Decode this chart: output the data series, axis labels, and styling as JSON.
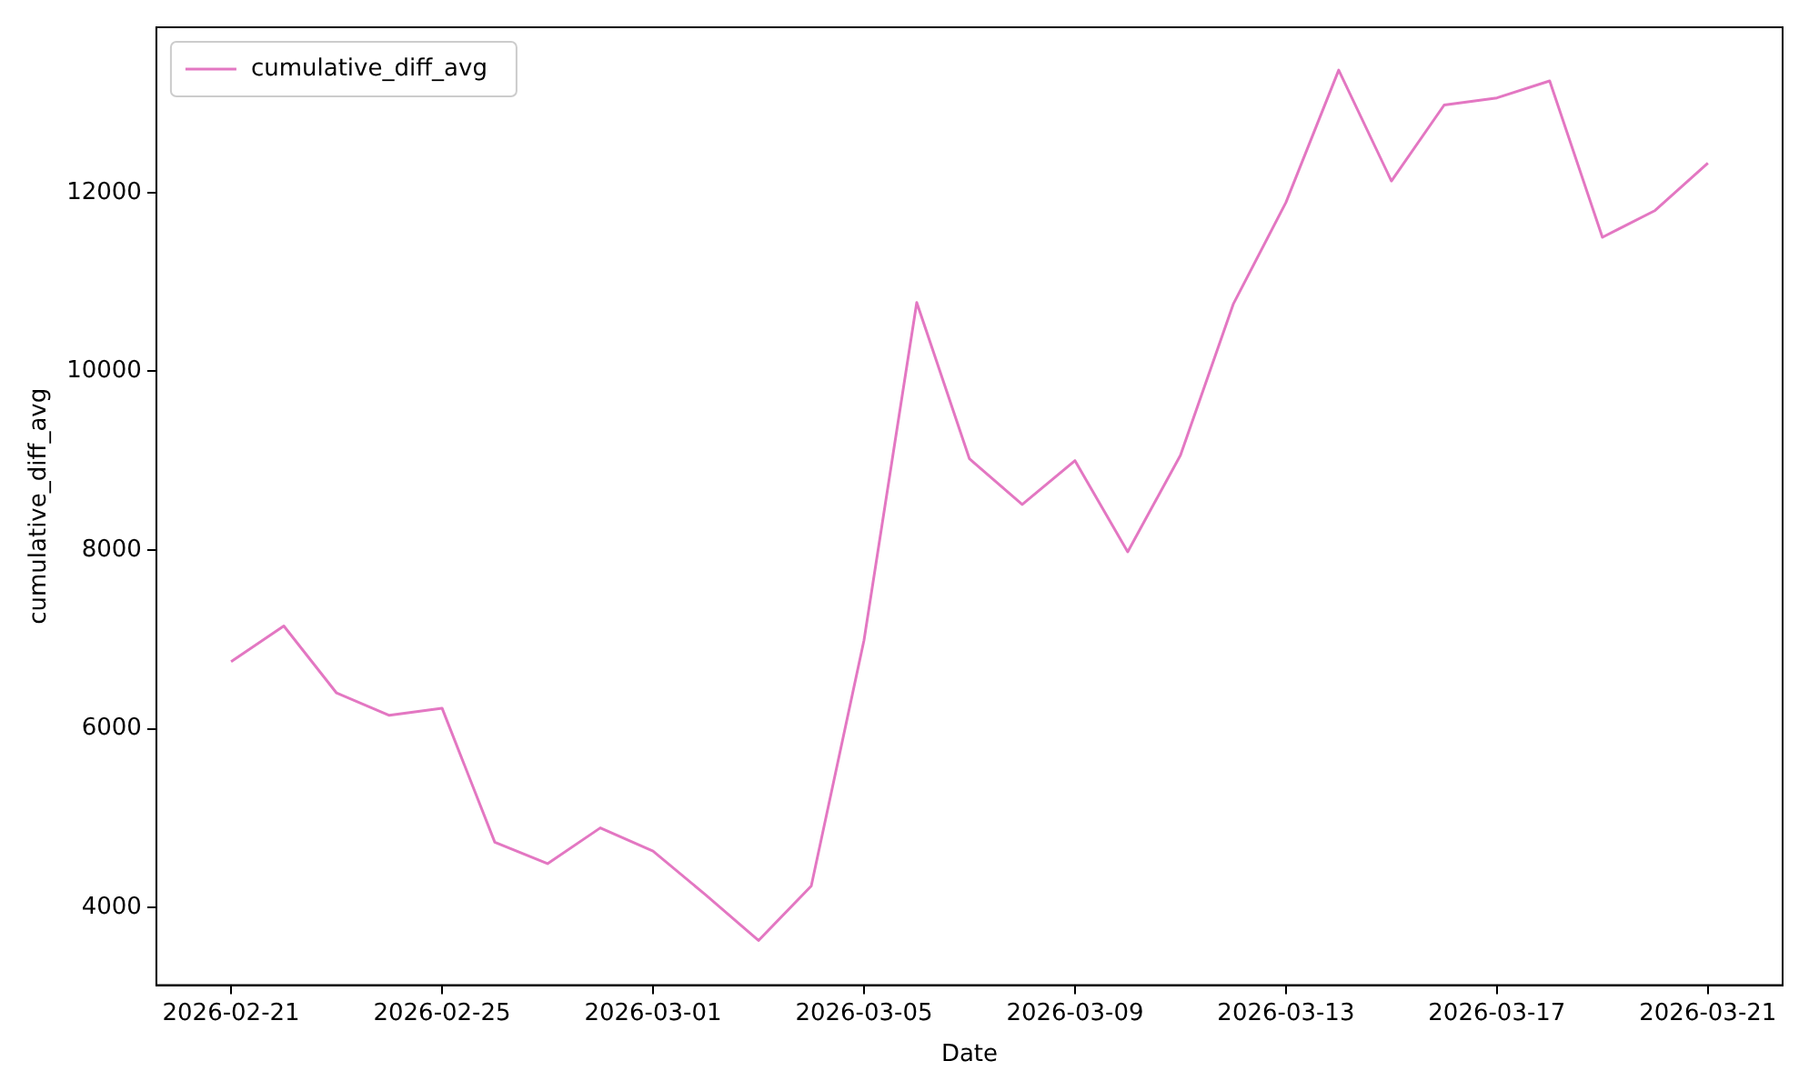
{
  "chart_data": {
    "type": "line",
    "xlabel": "Date",
    "ylabel": "cumulative_diff_avg",
    "x": [
      "2026-02-21",
      "2026-02-22",
      "2026-02-23",
      "2026-02-24",
      "2026-02-25",
      "2026-02-26",
      "2026-02-27",
      "2026-02-28",
      "2026-03-01",
      "2026-03-02",
      "2026-03-03",
      "2026-03-04",
      "2026-03-05",
      "2026-03-06",
      "2026-03-07",
      "2026-03-08",
      "2026-03-09",
      "2026-03-10",
      "2026-03-11",
      "2026-03-12",
      "2026-03-13",
      "2026-03-14",
      "2026-03-15",
      "2026-03-16",
      "2026-03-17",
      "2026-03-18",
      "2026-03-19",
      "2026-03-20",
      "2026-03-21"
    ],
    "series": [
      {
        "name": "cumulative_diff_avg",
        "color": "#e377c2",
        "values": [
          6750,
          7150,
          6400,
          6150,
          6230,
          4730,
          4490,
          4890,
          4630,
          4140,
          3630,
          4240,
          6990,
          10770,
          9020,
          8510,
          9000,
          7980,
          9060,
          10750,
          11890,
          13370,
          12130,
          12980,
          13060,
          13250,
          11500,
          11800,
          12330
        ]
      }
    ],
    "xlim": [
      "2026-02-19T14:00",
      "2026-03-22T10:00"
    ],
    "xticks": [
      "2026-02-21",
      "2026-02-25",
      "2026-03-01",
      "2026-03-05",
      "2026-03-09",
      "2026-03-13",
      "2026-03-17",
      "2026-03-21"
    ],
    "ylim": [
      3130,
      13850
    ],
    "yticks": [
      4000,
      6000,
      8000,
      10000,
      12000
    ],
    "grid": false,
    "legend": "top left",
    "marker": "none",
    "line_style": "solid"
  }
}
